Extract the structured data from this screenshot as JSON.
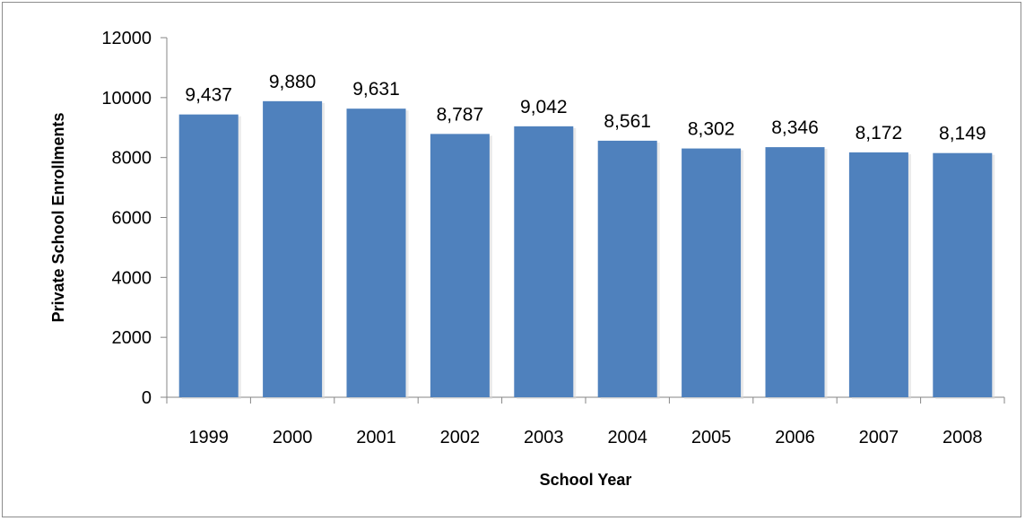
{
  "chart_data": {
    "type": "bar",
    "categories": [
      "1999",
      "2000",
      "2001",
      "2002",
      "2003",
      "2004",
      "2005",
      "2006",
      "2007",
      "2008"
    ],
    "values": [
      9437,
      9880,
      9631,
      8787,
      9042,
      8561,
      8302,
      8346,
      8172,
      8149
    ],
    "data_labels": [
      "9,437",
      "9,880",
      "9,631",
      "8,787",
      "9,042",
      "8,561",
      "8,302",
      "8,346",
      "8,172",
      "8,149"
    ],
    "xlabel": "School Year",
    "ylabel": "Private School Enrollments",
    "ylim": [
      0,
      12000
    ],
    "yticks": [
      "0",
      "2000",
      "4000",
      "6000",
      "8000",
      "10000",
      "12000"
    ],
    "grid": false,
    "legend": "none",
    "bar_color": "#4f81bd"
  }
}
